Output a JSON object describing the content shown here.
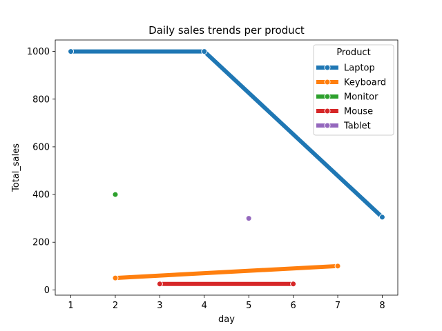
{
  "chart_data": {
    "type": "line",
    "title": "Daily sales trends per product",
    "xlabel": "day",
    "ylabel": "Total_sales",
    "xlim": [
      0.65,
      8.35
    ],
    "ylim": [
      -22,
      1048
    ],
    "x_ticks": [
      1,
      2,
      3,
      4,
      5,
      6,
      7,
      8
    ],
    "y_ticks": [
      0,
      200,
      400,
      600,
      800,
      1000
    ],
    "grid": false,
    "legend": {
      "title": "Product",
      "placement": "top-right"
    },
    "series": [
      {
        "name": "Laptop",
        "color": "#1f77b4",
        "points": [
          [
            1,
            1000
          ],
          [
            4,
            1000
          ],
          [
            8,
            305
          ]
        ]
      },
      {
        "name": "Keyboard",
        "color": "#ff7f0e",
        "points": [
          [
            2,
            50
          ],
          [
            7,
            100
          ]
        ]
      },
      {
        "name": "Monitor",
        "color": "#2ca02c",
        "points": [
          [
            2,
            400
          ]
        ]
      },
      {
        "name": "Mouse",
        "color": "#d62728",
        "points": [
          [
            3,
            25
          ],
          [
            6,
            25
          ]
        ]
      },
      {
        "name": "Tablet",
        "color": "#9467bd",
        "points": [
          [
            5,
            300
          ]
        ]
      }
    ]
  }
}
